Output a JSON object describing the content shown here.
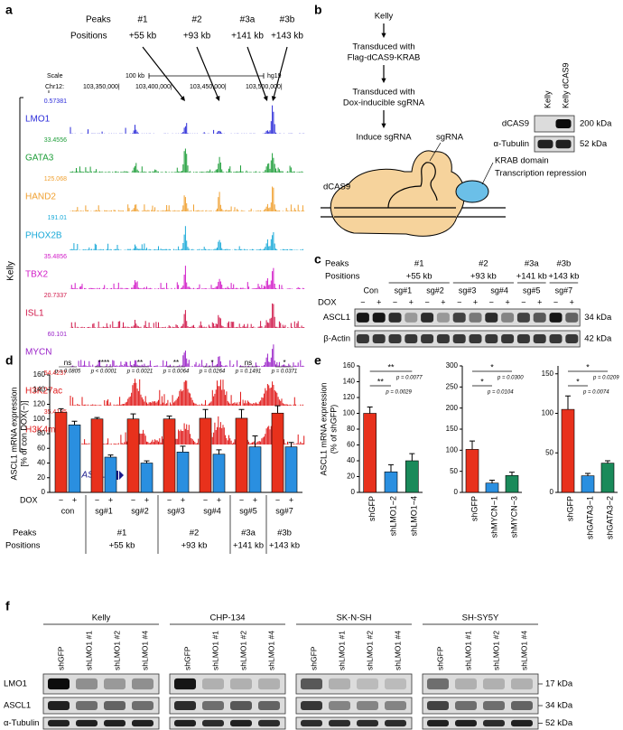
{
  "panel_labels": [
    "a",
    "b",
    "c",
    "d",
    "e",
    "f"
  ],
  "panel_a": {
    "peaks_label": "Peaks",
    "positions_label": "Positions",
    "peaks": [
      "#1",
      "#2",
      "#3a",
      "#3b"
    ],
    "positions": [
      "+55 kb",
      "+93 kb",
      "+141 kb",
      "+143 kb"
    ],
    "scale_label": "Scale",
    "scale_bar": "100 kb",
    "assembly": "hg19",
    "chrom": "Chr12:",
    "coordinates": [
      "103,350,000|",
      "103,400,000|",
      "103,450,000|",
      "103,500,000|"
    ],
    "cell_line": "Kelly",
    "tracks": [
      {
        "name": "LMO1",
        "max": 0.57381,
        "color": "#2b2bd9"
      },
      {
        "name": "GATA3",
        "max": 33.4556,
        "color": "#1f9e3a"
      },
      {
        "name": "HAND2",
        "max": 125.068,
        "color": "#f0a030"
      },
      {
        "name": "PHOX2B",
        "max": 191.01,
        "color": "#19a9d8"
      },
      {
        "name": "TBX2",
        "max": 35.4856,
        "color": "#d21cc8"
      },
      {
        "name": "ISL1",
        "max": 20.7337,
        "color": "#d0184a"
      },
      {
        "name": "MYCN",
        "max": 60.101,
        "color": "#9a22c8"
      },
      {
        "name": "H3K27ac",
        "max": 54.4237,
        "color": "#e01818"
      },
      {
        "name": "H3K4me1",
        "max": 35.4195,
        "color": "#e01818"
      }
    ],
    "gene": "ASCL1"
  },
  "panel_b": {
    "flow": [
      [
        "Kelly"
      ],
      [
        "Transduced with",
        "Flag-dCAS9-KRAB"
      ],
      [
        "Transduced with",
        "Dox-inducible sgRNA"
      ],
      [
        "Induce sgRNA"
      ]
    ],
    "blot_lanes": [
      "Kelly",
      "Kelly dCAS9"
    ],
    "blot_rows": [
      {
        "name": "dCAS9",
        "size": "200 kDa"
      },
      {
        "name": "α-Tubulin",
        "size": "52 kDa"
      }
    ],
    "diagram": {
      "sgrna": "sgRNA",
      "dcas9": "dCAS9",
      "krab": "KRAB domain",
      "effect": "Transcription repression"
    }
  },
  "panel_c": {
    "peaks_label": "Peaks",
    "positions_label": "Positions",
    "peaks": [
      "#1",
      "#2",
      "#3a",
      "#3b"
    ],
    "positions": [
      "+55 kb",
      "+93 kb",
      "+141 kb",
      "+143 kb"
    ],
    "lanes": [
      "Con",
      "sg#1",
      "sg#2",
      "sg#3",
      "sg#4",
      "sg#5",
      "sg#7"
    ],
    "dox_label": "DOX",
    "dox_states": [
      "−",
      "+"
    ],
    "blot_rows": [
      {
        "name": "ASCL1",
        "size": "34 kDa"
      },
      {
        "name": "β-Actin",
        "size": "42 kDa"
      }
    ]
  },
  "chart_data": [
    {
      "type": "bar",
      "ylabel": [
        "ASCL1 mRNA expression",
        "[% of con DOX(−)]"
      ],
      "categories": [
        "con",
        "sg#1",
        "sg#2",
        "sg#3",
        "sg#4",
        "sg#5",
        "sg#7"
      ],
      "series": [
        {
          "name": "−",
          "color": "#e8311c",
          "values": [
            109,
            100,
            100,
            100,
            101,
            101,
            108
          ],
          "errors": [
            5,
            2,
            7,
            4,
            12,
            12,
            10
          ]
        },
        {
          "name": "+",
          "color": "#2a8fe0",
          "values": [
            92,
            48,
            40,
            55,
            52,
            62,
            62
          ],
          "errors": [
            5,
            3,
            3,
            8,
            6,
            15,
            6
          ]
        }
      ],
      "ylim": [
        0,
        160
      ],
      "yticks": [
        0,
        20,
        40,
        60,
        80,
        100,
        120,
        140,
        160
      ],
      "significance": [
        "ns",
        "****",
        "**",
        "**",
        "*",
        "ns",
        "*"
      ],
      "p_values": [
        "p = 0.0805",
        "p < 0.0001",
        "p = 0.0021",
        "p = 0.0064",
        "p = 0.0264",
        "p = 0.1491",
        "p = 0.0371"
      ],
      "dox_label": "DOX",
      "peaks_label": "Peaks",
      "positions_label": "Positions",
      "peaks": [
        "#1",
        "#2",
        "#3a",
        "#3b"
      ],
      "positions": [
        "+55 kb",
        "+93 kb",
        "+141 kb",
        "+143 kb"
      ]
    },
    {
      "type": "bar",
      "ylabel": [
        "ASCL1 mRNA expression",
        "(% of shGFP)"
      ],
      "categories": [
        "shGFP",
        "shLMO1−2",
        "shLMO1−4"
      ],
      "values": [
        100,
        26,
        40
      ],
      "errors": [
        8,
        9,
        9
      ],
      "colors": [
        "#e8311c",
        "#2a8fe0",
        "#1a8a5a"
      ],
      "ylim": [
        0,
        160
      ],
      "yticks": [
        0,
        20,
        40,
        60,
        80,
        100,
        120,
        140,
        160
      ],
      "significance": [
        "**",
        "**"
      ],
      "p_values": [
        "p = 0.0077",
        "p = 0.0029"
      ]
    },
    {
      "type": "bar",
      "categories": [
        "shGFP",
        "shMYCN−1",
        "shMYCN−3"
      ],
      "values": [
        102,
        22,
        40
      ],
      "errors": [
        20,
        7,
        8
      ],
      "colors": [
        "#e8311c",
        "#2a8fe0",
        "#1a8a5a"
      ],
      "ylim": [
        0,
        300
      ],
      "yticks": [
        0,
        50,
        100,
        150,
        200,
        250,
        300
      ],
      "significance": [
        "*",
        "*"
      ],
      "p_values": [
        "p = 0.0300",
        "p = 0.0104"
      ]
    },
    {
      "type": "bar",
      "categories": [
        "shGFP",
        "shGATA3−1",
        "shGATA3−2"
      ],
      "values": [
        105,
        21,
        37
      ],
      "errors": [
        17,
        3,
        3
      ],
      "colors": [
        "#e8311c",
        "#2a8fe0",
        "#1a8a5a"
      ],
      "ylim": [
        0,
        160
      ],
      "yticks": [
        0,
        50,
        100,
        150
      ],
      "significance": [
        "*",
        "*"
      ],
      "p_values": [
        "p = 0.0209",
        "p = 0.0074"
      ]
    }
  ],
  "panel_f": {
    "cell_lines": [
      "Kelly",
      "CHP-134",
      "SK-N-SH",
      "SH-SY5Y"
    ],
    "lanes": [
      "shGFP",
      "shLMO1 #1",
      "shLMO1 #2",
      "shLMO1 #4"
    ],
    "blot_rows": [
      {
        "name": "LMO1",
        "size": "17 kDa"
      },
      {
        "name": "ASCL1",
        "size": "34 kDa"
      },
      {
        "name": "α-Tubulin",
        "size": "52 kDa"
      }
    ]
  }
}
